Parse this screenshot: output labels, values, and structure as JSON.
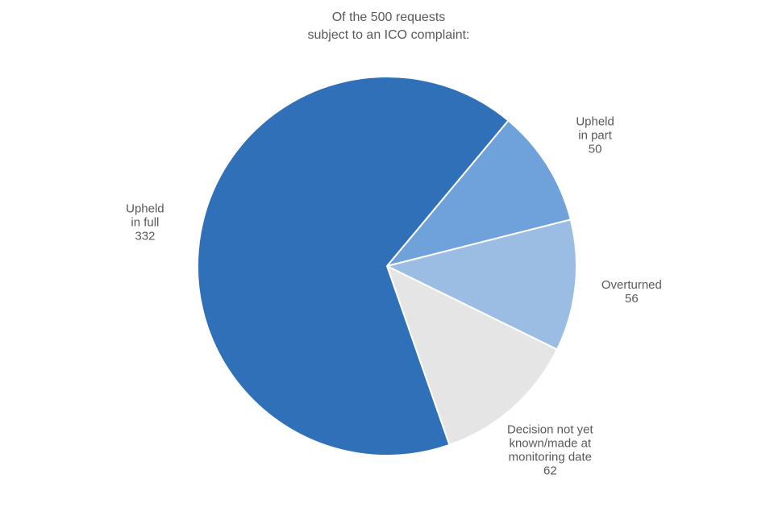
{
  "chart_data": {
    "type": "pie",
    "title": [
      "Of the 500 requests",
      "subject to an ICO complaint:"
    ],
    "categories": [
      "Upheld\nin part",
      "Overturned",
      "Decision not yet\nknown/made at\nmonitoring date",
      "Upheld\nin full"
    ],
    "values": [
      50,
      56,
      62,
      332
    ],
    "colors": [
      "#6fa1db",
      "#9bbde3",
      "#e5e5e5",
      "#3070b8"
    ]
  }
}
